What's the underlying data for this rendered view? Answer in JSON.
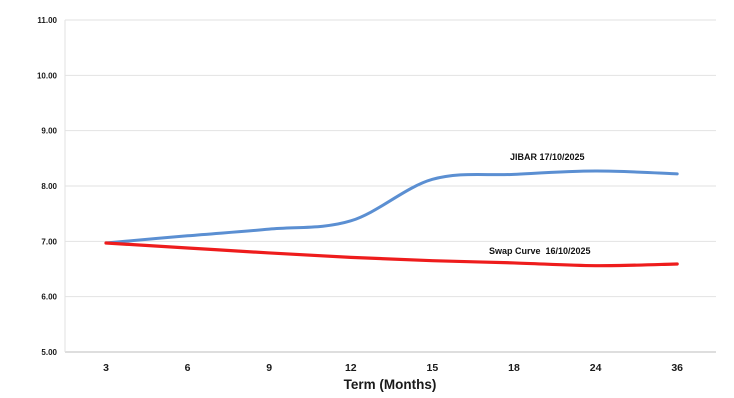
{
  "chart_data": {
    "type": "line",
    "categories": [
      "3",
      "6",
      "9",
      "12",
      "15",
      "18",
      "24",
      "36"
    ],
    "series": [
      {
        "name": "JIBAR 17/10/2025",
        "color": "#5b8fd2",
        "values": [
          6.97,
          7.1,
          7.22,
          7.37,
          8.12,
          8.21,
          8.27,
          8.22
        ]
      },
      {
        "name": "Swap Curve  16/10/2025",
        "color": "#ee1c1c",
        "values": [
          6.97,
          6.88,
          6.79,
          6.71,
          6.65,
          6.61,
          6.56,
          6.59
        ]
      }
    ],
    "yticks": [
      "5.00",
      "6.00",
      "7.00",
      "8.00",
      "9.00",
      "10.00",
      "11.00"
    ],
    "ylim": [
      5,
      11
    ],
    "xlabel": "Term (Months)",
    "ylabel": "",
    "title": "",
    "grid": true
  }
}
